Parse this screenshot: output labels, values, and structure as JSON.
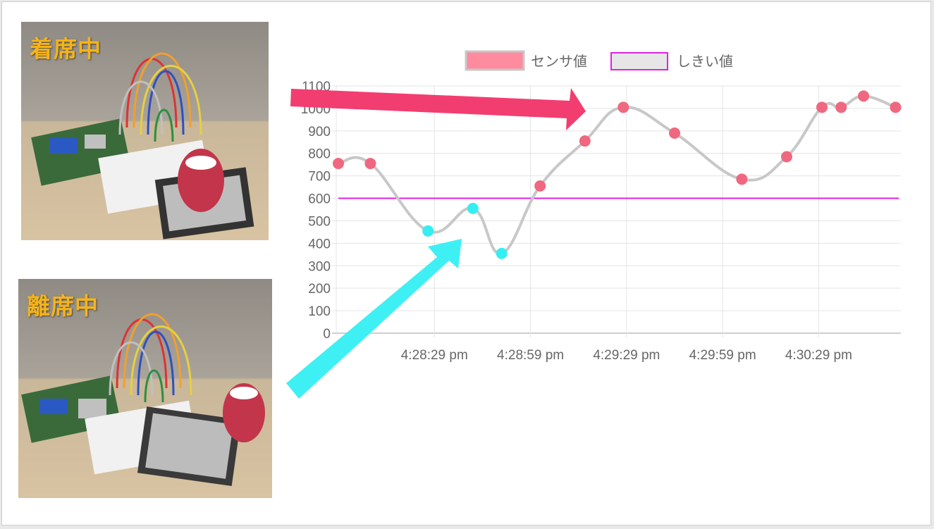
{
  "photos": {
    "top_label": "着席中",
    "bottom_label": "離席中"
  },
  "chart_data": {
    "type": "line",
    "legend": [
      {
        "label": "センサ値",
        "fill": "#ff8b9e",
        "border": "#c8c8c8"
      },
      {
        "label": "しきい値",
        "fill": "#e6e6e6",
        "border": "#e020e0"
      }
    ],
    "y_ticks": [
      "0",
      "100",
      "200",
      "300",
      "400",
      "500",
      "600",
      "700",
      "800",
      "900",
      "1000",
      "1100"
    ],
    "ylim": [
      0,
      1100
    ],
    "x_ticks": [
      "4:28:29 pm",
      "4:28:59 pm",
      "4:29:29 pm",
      "4:29:59 pm",
      "4:30:29 pm"
    ],
    "x_tick_seconds": [
      30,
      60,
      90,
      120,
      150
    ],
    "xlim_seconds": [
      0,
      175
    ],
    "series": [
      {
        "name": "センサ値",
        "line_color": "#c8c8c8",
        "points": [
          {
            "t": 0,
            "v": 755,
            "state": "above"
          },
          {
            "t": 10,
            "v": 755,
            "state": "above"
          },
          {
            "t": 28,
            "v": 455,
            "state": "below"
          },
          {
            "t": 42,
            "v": 555,
            "state": "below"
          },
          {
            "t": 51,
            "v": 355,
            "state": "below"
          },
          {
            "t": 63,
            "v": 655,
            "state": "above"
          },
          {
            "t": 77,
            "v": 855,
            "state": "above"
          },
          {
            "t": 89,
            "v": 1005,
            "state": "above"
          },
          {
            "t": 105,
            "v": 890,
            "state": "above"
          },
          {
            "t": 126,
            "v": 685,
            "state": "above"
          },
          {
            "t": 140,
            "v": 785,
            "state": "above"
          },
          {
            "t": 151,
            "v": 1005,
            "state": "above"
          },
          {
            "t": 157,
            "v": 1005,
            "state": "above"
          },
          {
            "t": 164,
            "v": 1055,
            "state": "above"
          },
          {
            "t": 174,
            "v": 1005,
            "state": "above"
          }
        ]
      },
      {
        "name": "しきい値",
        "line_color": "#e020e0",
        "value": 600
      }
    ],
    "point_colors": {
      "above": "#f0687f",
      "below": "#35eef2"
    },
    "grid": true
  },
  "annotations": {
    "arrow_colors": {
      "red": "#f23d70",
      "cyan": "#3ef0f4"
    }
  }
}
